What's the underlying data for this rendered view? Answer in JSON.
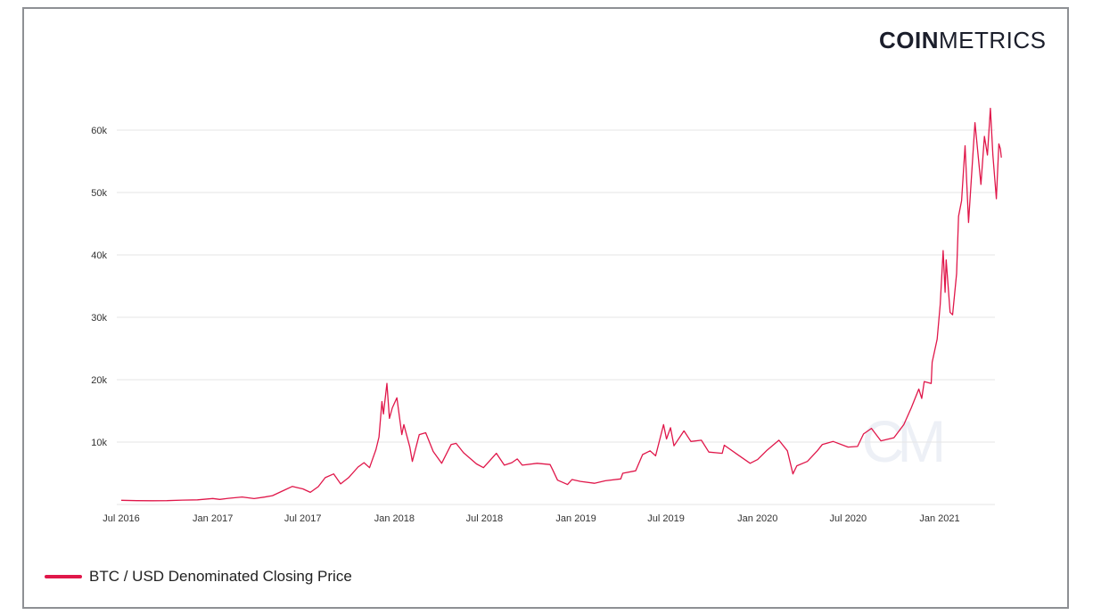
{
  "logo": {
    "bold": "COIN",
    "light": "METRICS"
  },
  "watermark": "CM",
  "colors": {
    "line": "#e0174a",
    "grid": "#e6e6e6",
    "border": "#8e9094"
  },
  "chart_data": {
    "type": "line",
    "title": "",
    "xlabel": "",
    "ylabel": "",
    "ylim": [
      0,
      64000
    ],
    "xlim": [
      "2016-07-01",
      "2021-05-05"
    ],
    "grid": "horizontal",
    "legend_position": "bottom-left",
    "y_ticks": [
      {
        "value": 10000,
        "label": "10k"
      },
      {
        "value": 20000,
        "label": "20k"
      },
      {
        "value": 30000,
        "label": "30k"
      },
      {
        "value": 40000,
        "label": "40k"
      },
      {
        "value": 50000,
        "label": "50k"
      },
      {
        "value": 60000,
        "label": "60k"
      }
    ],
    "x_ticks": [
      {
        "date": "2016-07-01",
        "label": "Jul 2016"
      },
      {
        "date": "2017-01-01",
        "label": "Jan 2017"
      },
      {
        "date": "2017-07-01",
        "label": "Jul 2017"
      },
      {
        "date": "2018-01-01",
        "label": "Jan 2018"
      },
      {
        "date": "2018-07-01",
        "label": "Jul 2018"
      },
      {
        "date": "2019-01-01",
        "label": "Jan 2019"
      },
      {
        "date": "2019-07-01",
        "label": "Jul 2019"
      },
      {
        "date": "2020-01-01",
        "label": "Jan 2020"
      },
      {
        "date": "2020-07-01",
        "label": "Jul 2020"
      },
      {
        "date": "2021-01-01",
        "label": "Jan 2021"
      }
    ],
    "series": [
      {
        "name": "BTC / USD Denominated Closing Price",
        "points": [
          [
            "2016-07-01",
            670
          ],
          [
            "2016-08-01",
            620
          ],
          [
            "2016-09-01",
            600
          ],
          [
            "2016-10-01",
            615
          ],
          [
            "2016-11-01",
            700
          ],
          [
            "2016-12-01",
            750
          ],
          [
            "2017-01-01",
            960
          ],
          [
            "2017-01-15",
            820
          ],
          [
            "2017-02-01",
            990
          ],
          [
            "2017-03-01",
            1200
          ],
          [
            "2017-03-25",
            950
          ],
          [
            "2017-04-15",
            1180
          ],
          [
            "2017-05-01",
            1420
          ],
          [
            "2017-05-25",
            2300
          ],
          [
            "2017-06-10",
            2900
          ],
          [
            "2017-06-20",
            2700
          ],
          [
            "2017-07-01",
            2500
          ],
          [
            "2017-07-16",
            1950
          ],
          [
            "2017-08-01",
            2850
          ],
          [
            "2017-08-15",
            4300
          ],
          [
            "2017-09-01",
            4900
          ],
          [
            "2017-09-15",
            3300
          ],
          [
            "2017-10-01",
            4300
          ],
          [
            "2017-10-20",
            6000
          ],
          [
            "2017-11-01",
            6700
          ],
          [
            "2017-11-12",
            5900
          ],
          [
            "2017-11-25",
            8800
          ],
          [
            "2017-12-01",
            10800
          ],
          [
            "2017-12-07",
            16500
          ],
          [
            "2017-12-10",
            14500
          ],
          [
            "2017-12-17",
            19400
          ],
          [
            "2017-12-22",
            13800
          ],
          [
            "2017-12-28",
            15500
          ],
          [
            "2018-01-06",
            17100
          ],
          [
            "2018-01-16",
            11200
          ],
          [
            "2018-01-20",
            12800
          ],
          [
            "2018-02-01",
            9200
          ],
          [
            "2018-02-06",
            6900
          ],
          [
            "2018-02-20",
            11200
          ],
          [
            "2018-03-05",
            11500
          ],
          [
            "2018-03-20",
            8500
          ],
          [
            "2018-04-06",
            6600
          ],
          [
            "2018-04-25",
            9600
          ],
          [
            "2018-05-05",
            9800
          ],
          [
            "2018-05-20",
            8300
          ],
          [
            "2018-06-15",
            6500
          ],
          [
            "2018-06-29",
            5900
          ],
          [
            "2018-07-25",
            8200
          ],
          [
            "2018-08-10",
            6300
          ],
          [
            "2018-08-25",
            6700
          ],
          [
            "2018-09-05",
            7300
          ],
          [
            "2018-09-15",
            6300
          ],
          [
            "2018-10-15",
            6600
          ],
          [
            "2018-11-10",
            6400
          ],
          [
            "2018-11-15",
            5600
          ],
          [
            "2018-11-25",
            3900
          ],
          [
            "2018-12-15",
            3200
          ],
          [
            "2018-12-24",
            4000
          ],
          [
            "2019-01-10",
            3700
          ],
          [
            "2019-02-07",
            3400
          ],
          [
            "2019-03-01",
            3800
          ],
          [
            "2019-04-01",
            4100
          ],
          [
            "2019-04-05",
            5000
          ],
          [
            "2019-05-01",
            5400
          ],
          [
            "2019-05-15",
            8000
          ],
          [
            "2019-05-30",
            8600
          ],
          [
            "2019-06-10",
            7800
          ],
          [
            "2019-06-26",
            12800
          ],
          [
            "2019-07-02",
            10500
          ],
          [
            "2019-07-10",
            12300
          ],
          [
            "2019-07-17",
            9400
          ],
          [
            "2019-08-06",
            11800
          ],
          [
            "2019-08-20",
            10100
          ],
          [
            "2019-09-10",
            10300
          ],
          [
            "2019-09-25",
            8400
          ],
          [
            "2019-10-22",
            8200
          ],
          [
            "2019-10-26",
            9500
          ],
          [
            "2019-11-20",
            8100
          ],
          [
            "2019-12-17",
            6600
          ],
          [
            "2020-01-01",
            7200
          ],
          [
            "2020-01-20",
            8700
          ],
          [
            "2020-02-13",
            10300
          ],
          [
            "2020-03-01",
            8600
          ],
          [
            "2020-03-12",
            4900
          ],
          [
            "2020-03-20",
            6200
          ],
          [
            "2020-04-10",
            6900
          ],
          [
            "2020-04-30",
            8600
          ],
          [
            "2020-05-10",
            9600
          ],
          [
            "2020-06-01",
            10100
          ],
          [
            "2020-07-01",
            9200
          ],
          [
            "2020-07-20",
            9300
          ],
          [
            "2020-08-01",
            11300
          ],
          [
            "2020-08-17",
            12200
          ],
          [
            "2020-09-05",
            10200
          ],
          [
            "2020-10-01",
            10700
          ],
          [
            "2020-10-21",
            12800
          ],
          [
            "2020-11-05",
            15500
          ],
          [
            "2020-11-20",
            18500
          ],
          [
            "2020-11-26",
            17000
          ],
          [
            "2020-12-01",
            19700
          ],
          [
            "2020-12-15",
            19400
          ],
          [
            "2020-12-17",
            22800
          ],
          [
            "2020-12-27",
            26500
          ],
          [
            "2021-01-02",
            32000
          ],
          [
            "2021-01-08",
            40700
          ],
          [
            "2021-01-12",
            34000
          ],
          [
            "2021-01-14",
            39200
          ],
          [
            "2021-01-22",
            30800
          ],
          [
            "2021-01-27",
            30400
          ],
          [
            "2021-02-04",
            37000
          ],
          [
            "2021-02-08",
            46200
          ],
          [
            "2021-02-14",
            48700
          ],
          [
            "2021-02-21",
            57500
          ],
          [
            "2021-02-28",
            45200
          ],
          [
            "2021-03-13",
            61200
          ],
          [
            "2021-03-25",
            51300
          ],
          [
            "2021-04-01",
            59000
          ],
          [
            "2021-04-07",
            56000
          ],
          [
            "2021-04-13",
            63500
          ],
          [
            "2021-04-18",
            56000
          ],
          [
            "2021-04-25",
            49000
          ],
          [
            "2021-04-30",
            57800
          ],
          [
            "2021-05-03",
            57000
          ],
          [
            "2021-05-05",
            55600
          ]
        ]
      }
    ]
  }
}
